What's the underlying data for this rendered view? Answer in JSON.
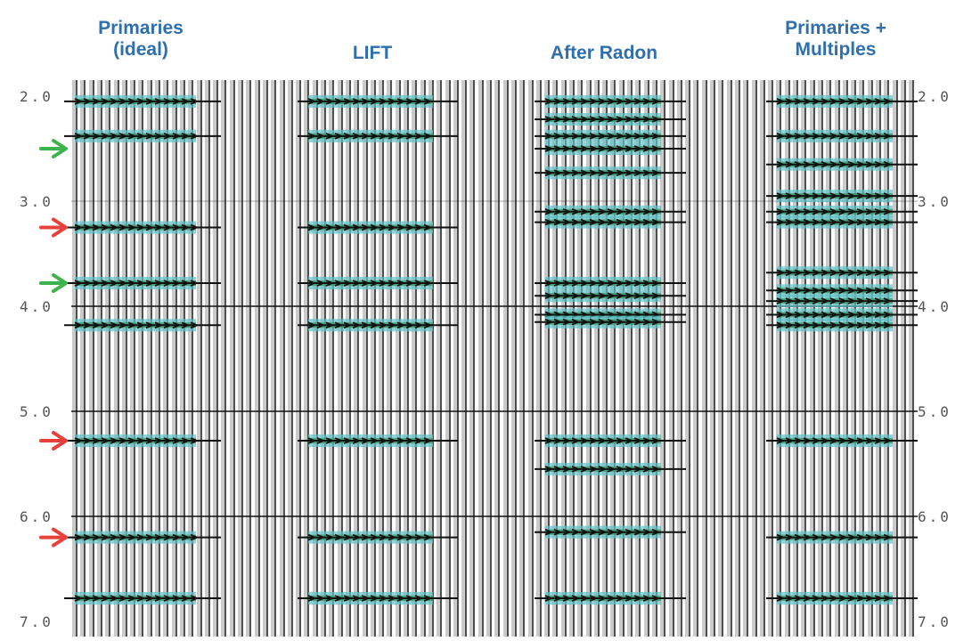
{
  "panels": [
    {
      "id": "primaries-ideal",
      "title_line1": "Primaries",
      "title_line2": "(ideal)"
    },
    {
      "id": "lift",
      "title_line1": "LIFT",
      "title_line2": ""
    },
    {
      "id": "after-radon",
      "title_line1": "After Radon",
      "title_line2": ""
    },
    {
      "id": "primaries-multiples",
      "title_line1": "Primaries +",
      "title_line2": "Multiples"
    }
  ],
  "time_axis": {
    "ticks": [
      "2.0",
      "3.0",
      "4.0",
      "5.0",
      "6.0",
      "7.0"
    ],
    "range": [
      2.0,
      7.0
    ]
  },
  "events": {
    "primaries-ideal": [
      2.05,
      2.38,
      3.25,
      3.78,
      4.18,
      5.28,
      6.2,
      6.78
    ],
    "lift": [
      2.05,
      2.38,
      3.25,
      3.78,
      4.18,
      5.28,
      6.2,
      6.78
    ],
    "after-radon": [
      2.05,
      2.22,
      2.38,
      2.5,
      2.73,
      3.1,
      3.2,
      3.78,
      3.9,
      4.08,
      4.15,
      5.28,
      5.55,
      6.15,
      6.78
    ],
    "primaries-multiples": [
      2.05,
      2.38,
      2.65,
      2.95,
      3.1,
      3.2,
      3.68,
      3.85,
      3.95,
      4.08,
      4.18,
      5.28,
      6.2,
      6.78
    ]
  },
  "arrows": [
    {
      "time": 2.5,
      "color": "#3cb44b"
    },
    {
      "time": 3.25,
      "color": "#e8413c"
    },
    {
      "time": 3.78,
      "color": "#3cb44b"
    },
    {
      "time": 5.28,
      "color": "#e8413c"
    },
    {
      "time": 6.2,
      "color": "#e8413c"
    }
  ],
  "colors": {
    "title": "#2f6fae",
    "trace": "#111111",
    "gray_band": "#b8b8b8",
    "event_teal": "#5ec2c8",
    "event_green": "#3a9a6a"
  }
}
